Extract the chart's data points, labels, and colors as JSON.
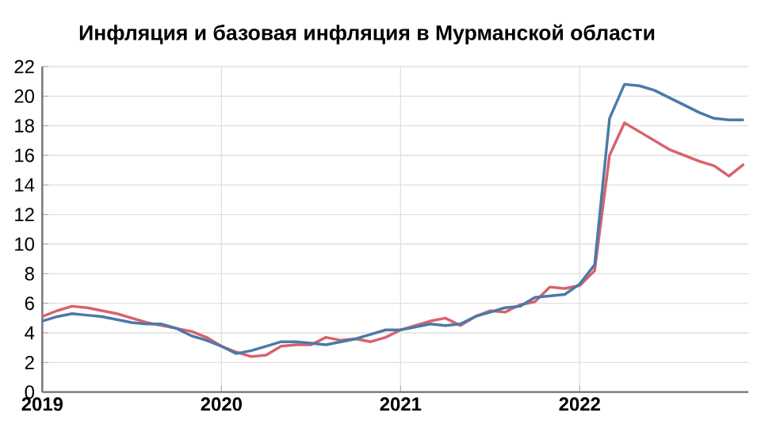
{
  "chart_data": {
    "type": "line",
    "title": "Инфляция и базовая инфляция в Мурманской области",
    "x": [
      "2019-01",
      "2019-02",
      "2019-03",
      "2019-04",
      "2019-05",
      "2019-06",
      "2019-07",
      "2019-08",
      "2019-09",
      "2019-10",
      "2019-11",
      "2019-12",
      "2020-01",
      "2020-02",
      "2020-03",
      "2020-04",
      "2020-05",
      "2020-06",
      "2020-07",
      "2020-08",
      "2020-09",
      "2020-10",
      "2020-11",
      "2020-12",
      "2021-01",
      "2021-02",
      "2021-03",
      "2021-04",
      "2021-05",
      "2021-06",
      "2021-07",
      "2021-08",
      "2021-09",
      "2021-10",
      "2021-11",
      "2021-12",
      "2022-01",
      "2022-02",
      "2022-03",
      "2022-04",
      "2022-05",
      "2022-06",
      "2022-07",
      "2022-08",
      "2022-09",
      "2022-10",
      "2022-11",
      "2022-12"
    ],
    "series": [
      {
        "color": "#d9626b",
        "values": [
          5.1,
          5.5,
          5.8,
          5.7,
          5.5,
          5.3,
          5.0,
          4.7,
          4.5,
          4.3,
          4.1,
          3.7,
          3.1,
          2.7,
          2.4,
          2.5,
          3.1,
          3.2,
          3.2,
          3.7,
          3.5,
          3.6,
          3.4,
          3.7,
          4.2,
          4.5,
          4.8,
          5.0,
          4.5,
          5.1,
          5.5,
          5.4,
          5.9,
          6.1,
          7.1,
          7.0,
          7.2,
          8.2,
          16.0,
          18.2,
          17.6,
          17.0,
          16.4,
          16.0,
          15.6,
          15.3,
          14.6,
          15.4
        ]
      },
      {
        "color": "#4a7aa7",
        "values": [
          4.8,
          5.1,
          5.3,
          5.2,
          5.1,
          4.9,
          4.7,
          4.6,
          4.6,
          4.3,
          3.8,
          3.5,
          3.1,
          2.6,
          2.8,
          3.1,
          3.4,
          3.4,
          3.3,
          3.2,
          3.4,
          3.6,
          3.9,
          4.2,
          4.2,
          4.4,
          4.6,
          4.5,
          4.6,
          5.1,
          5.4,
          5.7,
          5.8,
          6.4,
          6.5,
          6.6,
          7.3,
          8.6,
          18.5,
          20.8,
          20.7,
          20.4,
          19.9,
          19.4,
          18.9,
          18.5,
          18.4,
          18.4
        ]
      }
    ],
    "xlim": [
      "2019-01",
      "2022-12-10"
    ],
    "xticks": [
      {
        "value": "2019-01",
        "label": "2019"
      },
      {
        "value": "2020-01",
        "label": "2020"
      },
      {
        "value": "2021-01",
        "label": "2021"
      },
      {
        "value": "2022-01",
        "label": "2022"
      }
    ],
    "ylim": [
      0,
      22
    ],
    "yticks": [
      0,
      2,
      4,
      6,
      8,
      10,
      12,
      14,
      16,
      18,
      20,
      22
    ],
    "grid": true
  }
}
